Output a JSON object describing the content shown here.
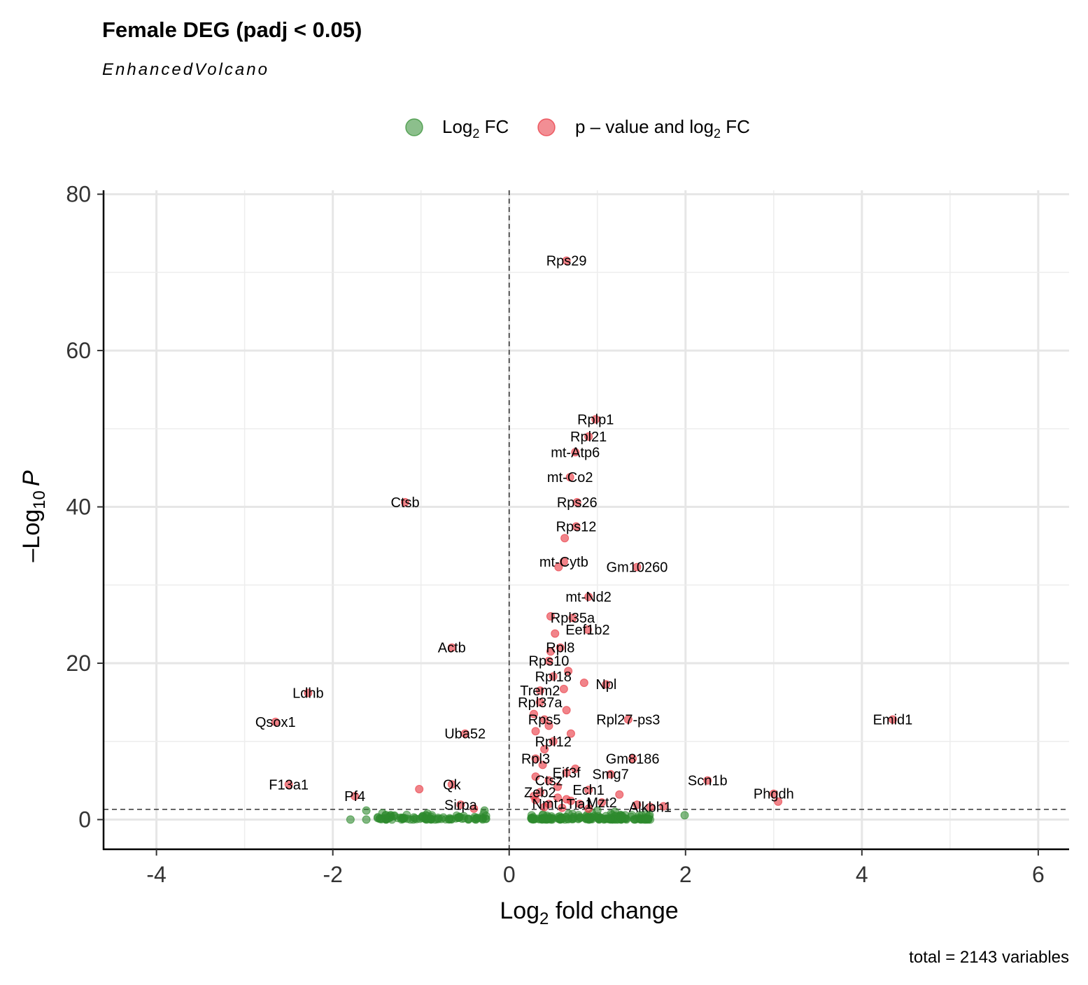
{
  "chart_data": {
    "type": "scatter",
    "title": "Female DEG (padj < 0.05)",
    "subtitle": "EnhancedVolcano",
    "caption": "total = 2143 variables",
    "xlabel": {
      "main": "Log",
      "sub": "2",
      "rest": " fold change"
    },
    "ylabel": {
      "pre": "–",
      "main": "Log",
      "sub": "10",
      "ital": "P"
    },
    "xlim": [
      -4.6,
      6.35
    ],
    "ylim": [
      -3.8,
      80.5
    ],
    "x_ticks": [
      -4,
      -2,
      0,
      2,
      4,
      6
    ],
    "x_tick_labels": [
      "-4",
      "-2",
      "0",
      "2",
      "4",
      "6"
    ],
    "y_ticks": [
      0,
      20,
      40,
      60,
      80
    ],
    "y_tick_labels": [
      "0",
      "20",
      "40",
      "60",
      "80"
    ],
    "grid": true,
    "legend_position": "top",
    "thresholds": {
      "x": 0,
      "y": 1.3
    },
    "colors": {
      "fc": "#2e8b2e",
      "sig": "#e8323c"
    },
    "legend": [
      {
        "key": "fc",
        "label_main": "Log",
        "label_sub": "2",
        "label_rest": " FC"
      },
      {
        "key": "sig",
        "label_main": "p – value and log",
        "label_sub": "2",
        "label_rest": " FC"
      }
    ],
    "series": [
      {
        "key": "sig",
        "points": [
          {
            "x": 0.65,
            "y": 71.5,
            "label": "Rps29"
          },
          {
            "x": 0.98,
            "y": 51.2,
            "label": "Rplp1"
          },
          {
            "x": 0.9,
            "y": 49.0,
            "label": "Rpl21"
          },
          {
            "x": 0.75,
            "y": 47.0,
            "label": "mt-Atp6"
          },
          {
            "x": 0.69,
            "y": 43.8,
            "label": "mt-Co2"
          },
          {
            "x": 0.77,
            "y": 40.6,
            "label": "Rps26"
          },
          {
            "x": -1.18,
            "y": 40.6,
            "label": "Ctsb"
          },
          {
            "x": 0.76,
            "y": 37.5,
            "label": "Rps12"
          },
          {
            "x": 0.63,
            "y": 36.0
          },
          {
            "x": 0.62,
            "y": 33.0,
            "label": "mt-Cytb"
          },
          {
            "x": 0.56,
            "y": 32.3
          },
          {
            "x": 1.45,
            "y": 32.3,
            "label": "Gm10260"
          },
          {
            "x": 0.9,
            "y": 28.5,
            "label": "mt-Nd2"
          },
          {
            "x": 0.72,
            "y": 25.8,
            "label": "Rpl35a"
          },
          {
            "x": 0.47,
            "y": 26.0
          },
          {
            "x": 0.89,
            "y": 24.3,
            "label": "Eef1b2"
          },
          {
            "x": 0.52,
            "y": 23.8
          },
          {
            "x": -0.65,
            "y": 22.0,
            "label": "Actb"
          },
          {
            "x": 0.58,
            "y": 22.0,
            "label": "Rpl8"
          },
          {
            "x": 0.47,
            "y": 21.5
          },
          {
            "x": 0.45,
            "y": 20.3,
            "label": "Rps10"
          },
          {
            "x": 0.67,
            "y": 19.0
          },
          {
            "x": 0.5,
            "y": 18.3,
            "label": "Rpl18"
          },
          {
            "x": 0.85,
            "y": 17.5
          },
          {
            "x": 1.1,
            "y": 17.3,
            "label": "Npl"
          },
          {
            "x": 0.35,
            "y": 16.5,
            "label": "Trem2"
          },
          {
            "x": 0.62,
            "y": 16.7
          },
          {
            "x": -2.28,
            "y": 16.2,
            "label": "Ldhb"
          },
          {
            "x": 0.35,
            "y": 15.0,
            "label": "Rpl37a"
          },
          {
            "x": 0.65,
            "y": 14.0
          },
          {
            "x": 0.28,
            "y": 13.5
          },
          {
            "x": 0.4,
            "y": 12.8,
            "label": "Rps5"
          },
          {
            "x": -2.65,
            "y": 12.5,
            "label": "Qsox1"
          },
          {
            "x": 1.35,
            "y": 12.8,
            "label": "Rpl27-ps3"
          },
          {
            "x": 4.35,
            "y": 12.8,
            "label": "Emid1"
          },
          {
            "x": 0.45,
            "y": 12.0
          },
          {
            "x": 0.3,
            "y": 11.3
          },
          {
            "x": 0.7,
            "y": 11.0
          },
          {
            "x": -0.5,
            "y": 11.0,
            "label": "Uba52"
          },
          {
            "x": 0.5,
            "y": 10.0,
            "label": "Rpl12"
          },
          {
            "x": 0.4,
            "y": 9.0
          },
          {
            "x": 0.3,
            "y": 7.8,
            "label": "Rpl3"
          },
          {
            "x": 1.4,
            "y": 7.8,
            "label": "Gm8186"
          },
          {
            "x": 0.38,
            "y": 7.0
          },
          {
            "x": 0.65,
            "y": 6.0,
            "label": "Eif3f"
          },
          {
            "x": 0.75,
            "y": 6.5
          },
          {
            "x": 1.15,
            "y": 5.8,
            "label": "Smg7"
          },
          {
            "x": 0.3,
            "y": 5.5
          },
          {
            "x": 0.45,
            "y": 5.0,
            "label": "Ctsz"
          },
          {
            "x": 2.25,
            "y": 5.0,
            "label": "Scn1b"
          },
          {
            "x": -2.5,
            "y": 4.5,
            "label": "F13a1"
          },
          {
            "x": -0.65,
            "y": 4.5,
            "label": "Qk"
          },
          {
            "x": -1.02,
            "y": 3.9
          },
          {
            "x": 0.55,
            "y": 4.2
          },
          {
            "x": 0.35,
            "y": 3.5,
            "label": "Zeb2"
          },
          {
            "x": 0.9,
            "y": 3.8,
            "label": "Ech1"
          },
          {
            "x": 1.25,
            "y": 3.2
          },
          {
            "x": 3.0,
            "y": 3.3,
            "label": "Phgdh"
          },
          {
            "x": 3.05,
            "y": 2.3
          },
          {
            "x": -1.75,
            "y": 3.0,
            "label": "Pf4"
          },
          {
            "x": 0.55,
            "y": 2.8
          },
          {
            "x": 0.7,
            "y": 2.4
          },
          {
            "x": 0.3,
            "y": 2.5
          },
          {
            "x": 0.45,
            "y": 2.0,
            "label": "Nmt1"
          },
          {
            "x": 0.8,
            "y": 2.0,
            "label": "Tia1"
          },
          {
            "x": 1.05,
            "y": 2.2,
            "label": "Mzt2"
          },
          {
            "x": 1.45,
            "y": 1.9
          },
          {
            "x": 1.6,
            "y": 1.6,
            "label": "Alkbh1"
          },
          {
            "x": 1.75,
            "y": 1.7
          },
          {
            "x": -0.55,
            "y": 1.9,
            "label": "Sirpa"
          },
          {
            "x": -0.4,
            "y": 1.4
          },
          {
            "x": 0.4,
            "y": 1.6
          },
          {
            "x": 0.6,
            "y": 1.5
          },
          {
            "x": 0.9,
            "y": 1.4
          },
          {
            "x": 0.65,
            "y": 2.6
          },
          {
            "x": 0.28,
            "y": 3.0
          }
        ]
      },
      {
        "key": "fc",
        "points": [
          {
            "x": 1.99,
            "y": 0.55
          },
          {
            "x": -1.8,
            "y": 0.0
          },
          {
            "x": -1.62,
            "y": 1.15
          },
          {
            "x": -1.62,
            "y": 0.0
          },
          {
            "x": -0.28,
            "y": 1.15
          },
          {
            "x": 1.0,
            "y": 1.15
          },
          {
            "x": 1.2,
            "y": 1.0
          },
          {
            "x": 1.55,
            "y": 0.0
          },
          {
            "x": 1.58,
            "y": 0.1
          },
          {
            "x": -1.45,
            "y": 0.05
          },
          {
            "x": -1.4,
            "y": 0.6
          }
        ]
      }
    ],
    "green_clusters": [
      {
        "xmin": -1.5,
        "xmax": -0.25,
        "count": 95
      },
      {
        "xmin": 0.25,
        "xmax": 1.6,
        "count": 170
      }
    ]
  }
}
